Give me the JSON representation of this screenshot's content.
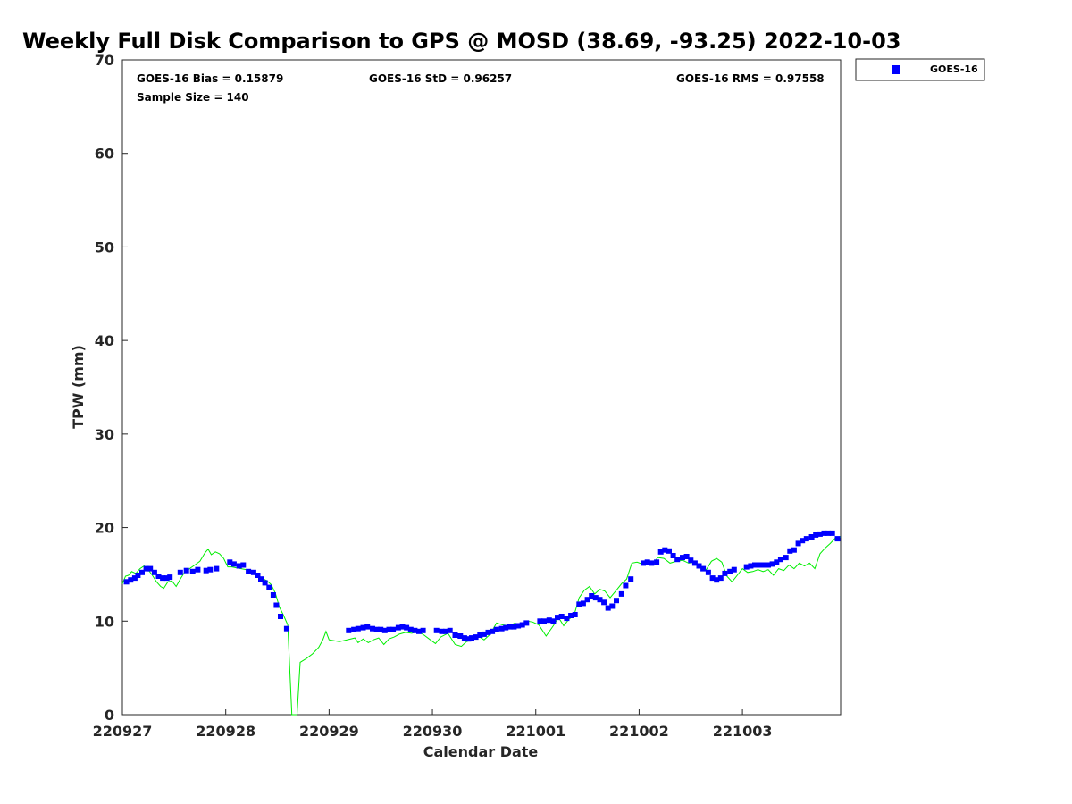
{
  "chart_data": {
    "type": "scatter",
    "title": "Weekly Full Disk Comparison to GPS @ MOSD (38.69, -93.25) 2022-10-03",
    "xlabel": "Calendar Date",
    "ylabel": "TPW (mm)",
    "xlim": [
      0,
      6.95
    ],
    "ylim": [
      0,
      70
    ],
    "x_unit": "days since 220927 00Z",
    "x_ticks": [
      {
        "value": 0,
        "label": "220927"
      },
      {
        "value": 1,
        "label": "220928"
      },
      {
        "value": 2,
        "label": "220929"
      },
      {
        "value": 3,
        "label": "220930"
      },
      {
        "value": 4,
        "label": "221001"
      },
      {
        "value": 5,
        "label": "221002"
      },
      {
        "value": 6,
        "label": "221003"
      }
    ],
    "y_ticks": [
      0,
      10,
      20,
      30,
      40,
      50,
      60,
      70
    ],
    "grid": false,
    "legend": {
      "position": "outside top-right",
      "entries": [
        "GOES-16"
      ]
    },
    "stats": {
      "bias": "GOES-16 Bias = 0.15879",
      "std": "GOES-16 StD = 0.96257",
      "rms": "GOES-16 RMS = 0.97558",
      "n": "Sample Size = 140"
    },
    "series": [
      {
        "name": "GOES-16",
        "kind": "markers",
        "marker": "square",
        "color": "#0000ff",
        "points": [
          [
            0.04,
            14.2
          ],
          [
            0.08,
            14.4
          ],
          [
            0.12,
            14.6
          ],
          [
            0.15,
            14.9
          ],
          [
            0.19,
            15.2
          ],
          [
            0.23,
            15.6
          ],
          [
            0.27,
            15.6
          ],
          [
            0.31,
            15.2
          ],
          [
            0.35,
            14.8
          ],
          [
            0.39,
            14.6
          ],
          [
            0.43,
            14.6
          ],
          [
            0.46,
            14.7
          ],
          [
            0.56,
            15.2
          ],
          [
            0.62,
            15.4
          ],
          [
            0.68,
            15.3
          ],
          [
            0.73,
            15.5
          ],
          [
            0.81,
            15.4
          ],
          [
            0.85,
            15.5
          ],
          [
            0.91,
            15.6
          ],
          [
            1.04,
            16.3
          ],
          [
            1.08,
            16.1
          ],
          [
            1.13,
            15.9
          ],
          [
            1.17,
            16.0
          ],
          [
            1.22,
            15.3
          ],
          [
            1.27,
            15.2
          ],
          [
            1.31,
            14.9
          ],
          [
            1.34,
            14.5
          ],
          [
            1.38,
            14.1
          ],
          [
            1.42,
            13.6
          ],
          [
            1.46,
            12.8
          ],
          [
            1.49,
            11.7
          ],
          [
            1.53,
            10.5
          ],
          [
            1.59,
            9.2
          ],
          [
            2.19,
            9.0
          ],
          [
            2.24,
            9.1
          ],
          [
            2.28,
            9.2
          ],
          [
            2.33,
            9.3
          ],
          [
            2.37,
            9.4
          ],
          [
            2.42,
            9.2
          ],
          [
            2.46,
            9.1
          ],
          [
            2.5,
            9.1
          ],
          [
            2.54,
            9.0
          ],
          [
            2.58,
            9.1
          ],
          [
            2.62,
            9.1
          ],
          [
            2.67,
            9.3
          ],
          [
            2.71,
            9.4
          ],
          [
            2.75,
            9.3
          ],
          [
            2.79,
            9.1
          ],
          [
            2.83,
            9.0
          ],
          [
            2.87,
            8.9
          ],
          [
            2.91,
            9.0
          ],
          [
            3.04,
            9.0
          ],
          [
            3.09,
            8.9
          ],
          [
            3.13,
            8.9
          ],
          [
            3.17,
            9.0
          ],
          [
            3.22,
            8.5
          ],
          [
            3.27,
            8.4
          ],
          [
            3.31,
            8.2
          ],
          [
            3.35,
            8.1
          ],
          [
            3.38,
            8.2
          ],
          [
            3.42,
            8.3
          ],
          [
            3.46,
            8.5
          ],
          [
            3.5,
            8.6
          ],
          [
            3.54,
            8.8
          ],
          [
            3.58,
            8.9
          ],
          [
            3.62,
            9.1
          ],
          [
            3.67,
            9.2
          ],
          [
            3.71,
            9.3
          ],
          [
            3.75,
            9.4
          ],
          [
            3.79,
            9.4
          ],
          [
            3.83,
            9.5
          ],
          [
            3.87,
            9.6
          ],
          [
            3.91,
            9.8
          ],
          [
            4.04,
            10.0
          ],
          [
            4.08,
            10.0
          ],
          [
            4.13,
            10.1
          ],
          [
            4.17,
            10.0
          ],
          [
            4.21,
            10.4
          ],
          [
            4.25,
            10.5
          ],
          [
            4.3,
            10.3
          ],
          [
            4.34,
            10.6
          ],
          [
            4.38,
            10.7
          ],
          [
            4.42,
            11.8
          ],
          [
            4.46,
            11.9
          ],
          [
            4.5,
            12.3
          ],
          [
            4.54,
            12.7
          ],
          [
            4.58,
            12.5
          ],
          [
            4.62,
            12.3
          ],
          [
            4.66,
            12.0
          ],
          [
            4.7,
            11.4
          ],
          [
            4.74,
            11.6
          ],
          [
            4.78,
            12.2
          ],
          [
            4.83,
            12.9
          ],
          [
            4.87,
            13.8
          ],
          [
            4.92,
            14.5
          ],
          [
            5.04,
            16.2
          ],
          [
            5.08,
            16.3
          ],
          [
            5.12,
            16.2
          ],
          [
            5.17,
            16.3
          ],
          [
            5.21,
            17.4
          ],
          [
            5.25,
            17.6
          ],
          [
            5.29,
            17.5
          ],
          [
            5.33,
            17.0
          ],
          [
            5.37,
            16.6
          ],
          [
            5.42,
            16.8
          ],
          [
            5.46,
            16.9
          ],
          [
            5.5,
            16.5
          ],
          [
            5.54,
            16.2
          ],
          [
            5.58,
            15.9
          ],
          [
            5.62,
            15.6
          ],
          [
            5.67,
            15.2
          ],
          [
            5.71,
            14.6
          ],
          [
            5.75,
            14.4
          ],
          [
            5.79,
            14.6
          ],
          [
            5.83,
            15.1
          ],
          [
            5.88,
            15.3
          ],
          [
            5.92,
            15.5
          ],
          [
            6.04,
            15.8
          ],
          [
            6.08,
            15.9
          ],
          [
            6.12,
            16.0
          ],
          [
            6.17,
            16.0
          ],
          [
            6.21,
            16.0
          ],
          [
            6.25,
            16.0
          ],
          [
            6.29,
            16.1
          ],
          [
            6.33,
            16.3
          ],
          [
            6.37,
            16.6
          ],
          [
            6.42,
            16.8
          ],
          [
            6.46,
            17.5
          ],
          [
            6.5,
            17.6
          ],
          [
            6.54,
            18.3
          ],
          [
            6.58,
            18.6
          ],
          [
            6.62,
            18.8
          ],
          [
            6.67,
            19.0
          ],
          [
            6.71,
            19.2
          ],
          [
            6.75,
            19.3
          ],
          [
            6.79,
            19.4
          ],
          [
            6.83,
            19.4
          ],
          [
            6.87,
            19.4
          ],
          [
            6.92,
            18.8
          ]
        ]
      },
      {
        "name": "",
        "kind": "line",
        "color": "#00ee00",
        "points": [
          [
            0.0,
            14.0
          ],
          [
            0.03,
            14.8
          ],
          [
            0.06,
            14.9
          ],
          [
            0.09,
            15.3
          ],
          [
            0.13,
            15.1
          ],
          [
            0.17,
            15.6
          ],
          [
            0.21,
            15.9
          ],
          [
            0.25,
            15.5
          ],
          [
            0.29,
            14.9
          ],
          [
            0.33,
            14.2
          ],
          [
            0.37,
            13.7
          ],
          [
            0.4,
            13.5
          ],
          [
            0.44,
            14.2
          ],
          [
            0.48,
            14.3
          ],
          [
            0.52,
            13.7
          ],
          [
            0.56,
            14.5
          ],
          [
            0.6,
            15.2
          ],
          [
            0.65,
            15.6
          ],
          [
            0.7,
            16.0
          ],
          [
            0.75,
            16.4
          ],
          [
            0.8,
            17.3
          ],
          [
            0.83,
            17.7
          ],
          [
            0.86,
            17.1
          ],
          [
            0.9,
            17.4
          ],
          [
            0.94,
            17.2
          ],
          [
            0.98,
            16.7
          ],
          [
            1.02,
            15.8
          ],
          [
            1.06,
            15.8
          ],
          [
            1.1,
            15.7
          ],
          [
            1.15,
            15.6
          ],
          [
            1.2,
            15.5
          ],
          [
            1.25,
            15.3
          ],
          [
            1.3,
            15.0
          ],
          [
            1.35,
            14.6
          ],
          [
            1.4,
            14.3
          ],
          [
            1.44,
            13.9
          ],
          [
            1.48,
            13.0
          ],
          [
            1.52,
            11.5
          ],
          [
            1.56,
            10.6
          ],
          [
            1.6,
            9.6
          ],
          [
            1.64,
            0.0
          ],
          [
            1.69,
            0.0
          ],
          [
            1.72,
            5.6
          ],
          [
            1.78,
            6.0
          ],
          [
            1.84,
            6.5
          ],
          [
            1.9,
            7.2
          ],
          [
            1.94,
            8.0
          ],
          [
            1.97,
            8.9
          ],
          [
            2.0,
            8.0
          ],
          [
            2.1,
            7.8
          ],
          [
            2.25,
            8.2
          ],
          [
            2.28,
            7.7
          ],
          [
            2.33,
            8.1
          ],
          [
            2.38,
            7.7
          ],
          [
            2.43,
            8.0
          ],
          [
            2.48,
            8.2
          ],
          [
            2.53,
            7.5
          ],
          [
            2.58,
            8.1
          ],
          [
            2.63,
            8.3
          ],
          [
            2.68,
            8.6
          ],
          [
            2.74,
            8.8
          ],
          [
            2.8,
            8.7
          ],
          [
            2.86,
            8.9
          ],
          [
            2.92,
            8.5
          ],
          [
            2.98,
            8.0
          ],
          [
            3.03,
            7.6
          ],
          [
            3.08,
            8.3
          ],
          [
            3.15,
            8.7
          ],
          [
            3.22,
            7.5
          ],
          [
            3.28,
            7.3
          ],
          [
            3.33,
            7.8
          ],
          [
            3.38,
            8.0
          ],
          [
            3.44,
            8.4
          ],
          [
            3.5,
            8.0
          ],
          [
            3.56,
            8.6
          ],
          [
            3.62,
            9.8
          ],
          [
            3.68,
            9.6
          ],
          [
            3.74,
            9.5
          ],
          [
            3.8,
            9.8
          ],
          [
            3.86,
            9.4
          ],
          [
            3.92,
            10.0
          ],
          [
            3.97,
            9.9
          ],
          [
            4.03,
            9.6
          ],
          [
            4.1,
            8.4
          ],
          [
            4.17,
            9.5
          ],
          [
            4.22,
            10.4
          ],
          [
            4.27,
            9.5
          ],
          [
            4.32,
            10.2
          ],
          [
            4.37,
            10.6
          ],
          [
            4.42,
            12.5
          ],
          [
            4.47,
            13.3
          ],
          [
            4.52,
            13.7
          ],
          [
            4.57,
            12.9
          ],
          [
            4.62,
            13.4
          ],
          [
            4.67,
            13.2
          ],
          [
            4.72,
            12.5
          ],
          [
            4.78,
            13.3
          ],
          [
            4.83,
            14.0
          ],
          [
            4.88,
            14.5
          ],
          [
            4.93,
            16.2
          ],
          [
            4.98,
            16.3
          ],
          [
            5.03,
            16.1
          ],
          [
            5.08,
            16.5
          ],
          [
            5.13,
            16.0
          ],
          [
            5.18,
            16.8
          ],
          [
            5.24,
            16.7
          ],
          [
            5.3,
            16.2
          ],
          [
            5.36,
            16.4
          ],
          [
            5.42,
            16.5
          ],
          [
            5.48,
            16.2
          ],
          [
            5.54,
            16.3
          ],
          [
            5.6,
            15.7
          ],
          [
            5.65,
            15.5
          ],
          [
            5.7,
            16.4
          ],
          [
            5.75,
            16.7
          ],
          [
            5.8,
            16.3
          ],
          [
            5.85,
            14.8
          ],
          [
            5.9,
            14.2
          ],
          [
            5.95,
            14.9
          ],
          [
            6.0,
            15.6
          ],
          [
            6.05,
            15.2
          ],
          [
            6.1,
            15.3
          ],
          [
            6.15,
            15.5
          ],
          [
            6.2,
            15.3
          ],
          [
            6.25,
            15.5
          ],
          [
            6.3,
            14.9
          ],
          [
            6.35,
            15.6
          ],
          [
            6.4,
            15.4
          ],
          [
            6.45,
            16.0
          ],
          [
            6.5,
            15.6
          ],
          [
            6.55,
            16.2
          ],
          [
            6.6,
            15.9
          ],
          [
            6.65,
            16.2
          ],
          [
            6.7,
            15.6
          ],
          [
            6.75,
            17.2
          ],
          [
            6.8,
            17.8
          ],
          [
            6.85,
            18.3
          ],
          [
            6.9,
            18.9
          ],
          [
            6.95,
            19.0
          ]
        ]
      }
    ]
  }
}
